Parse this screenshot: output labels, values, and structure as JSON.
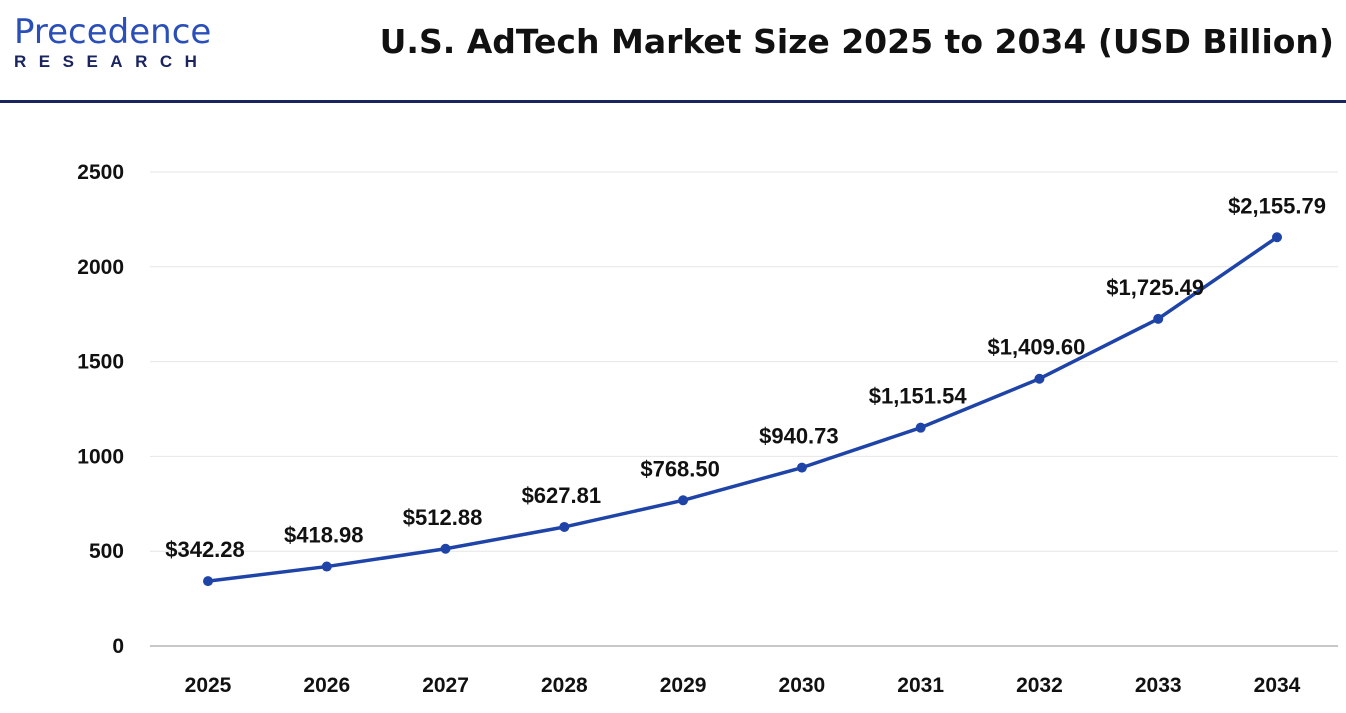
{
  "header": {
    "logo_main": "Precedence",
    "logo_sub": "RESEARCH",
    "title": "U.S. AdTech Market Size 2025 to 2034 (USD Billion)"
  },
  "colors": {
    "line": "#1f44a8",
    "rule": "#1a2560",
    "grid": "#e6e6e6"
  },
  "chart_data": {
    "type": "line",
    "title": "U.S. AdTech Market Size 2025 to 2034 (USD Billion)",
    "xlabel": "",
    "ylabel": "",
    "categories": [
      "2025",
      "2026",
      "2027",
      "2028",
      "2029",
      "2030",
      "2031",
      "2032",
      "2033",
      "2034"
    ],
    "series": [
      {
        "name": "U.S. AdTech Market Size",
        "values": [
          342.28,
          418.98,
          512.88,
          627.81,
          768.5,
          940.73,
          1151.54,
          1409.6,
          1725.49,
          2155.79
        ]
      }
    ],
    "data_labels": [
      "$342.28",
      "$418.98",
      "$512.88",
      "$627.81",
      "$768.50",
      "$940.73",
      "$1,151.54",
      "$1,409.60",
      "$1,725.49",
      "$2,155.79"
    ],
    "ylim": [
      0,
      2500
    ],
    "yticks": [
      "0",
      "500",
      "1000",
      "1500",
      "2000",
      "2500"
    ],
    "grid": true,
    "legend": "none"
  }
}
